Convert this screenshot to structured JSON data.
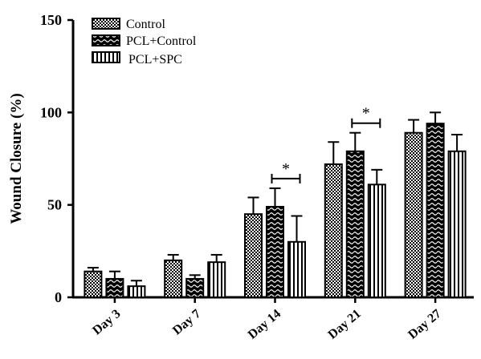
{
  "chart_data": {
    "type": "bar",
    "title": "",
    "xlabel": "",
    "ylabel": "Wound Closure (%)",
    "ylim": [
      0,
      150
    ],
    "yticks": [
      0,
      50,
      100,
      150
    ],
    "categories": [
      "Day 3",
      "Day 7",
      "Day 14",
      "Day 21",
      "Day 27"
    ],
    "series": [
      {
        "name": "Control",
        "pattern": "checker",
        "values": [
          14,
          20,
          45,
          72,
          89
        ],
        "errors": [
          2,
          3,
          9,
          12,
          7
        ]
      },
      {
        "name": "PCL+Control",
        "pattern": "wave",
        "values": [
          10,
          10,
          49,
          79,
          94
        ],
        "errors": [
          4,
          2,
          10,
          10,
          6
        ]
      },
      {
        "name": "PCL+SPC",
        "pattern": "vstripes",
        "values": [
          6,
          19,
          30,
          61,
          79
        ],
        "errors": [
          3,
          4,
          14,
          8,
          9
        ]
      }
    ],
    "significance": [
      {
        "category": "Day 14",
        "label": "*"
      },
      {
        "category": "Day 21",
        "label": "*"
      }
    ],
    "legend_position": "top-left",
    "grid": false
  }
}
